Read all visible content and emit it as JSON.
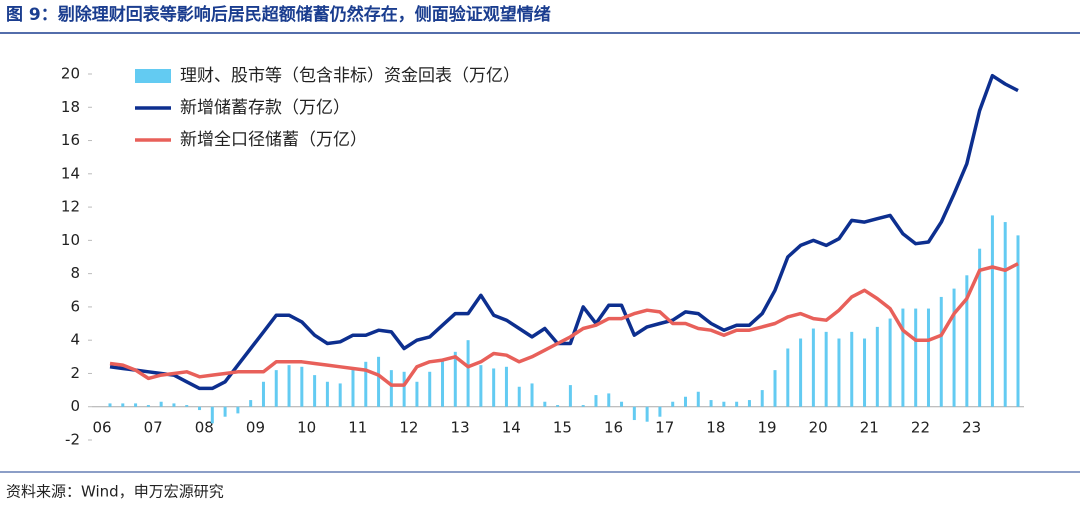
{
  "chart_data": {
    "type": "bar_line",
    "title": "图 9：剔除理财回表等影响后居民超额储蓄仍然存在，侧面验证观望情绪",
    "source": "资料来源：Wind，申万宏源研究",
    "categories": [
      "06",
      null,
      null,
      null,
      "07",
      null,
      null,
      null,
      "08",
      null,
      null,
      null,
      "09",
      null,
      null,
      null,
      "10",
      null,
      null,
      null,
      "11",
      null,
      null,
      null,
      "12",
      null,
      null,
      null,
      "13",
      null,
      null,
      null,
      "14",
      null,
      null,
      null,
      "15",
      null,
      null,
      null,
      "16",
      null,
      null,
      null,
      "17",
      null,
      null,
      null,
      "18",
      null,
      null,
      null,
      "19",
      null,
      null,
      null,
      "20",
      null,
      null,
      null,
      "21",
      null,
      null,
      null,
      "22",
      null,
      null,
      null,
      "23",
      null,
      null,
      null
    ],
    "ylim": [
      -2,
      20
    ],
    "yticks": [
      -2,
      0,
      2,
      4,
      6,
      8,
      10,
      12,
      14,
      16,
      18,
      20
    ],
    "legend": "upper left",
    "grid": false,
    "series": [
      {
        "name": "理财、股市等（包含非标）资金回表（万亿）",
        "type": "bar",
        "color": "#63cbf2",
        "values": [
          0.2,
          0.2,
          0.2,
          0.1,
          0.3,
          0.2,
          0.1,
          -0.2,
          -1.0,
          -0.6,
          -0.4,
          0.4,
          1.5,
          2.2,
          2.5,
          2.4,
          1.9,
          1.5,
          1.4,
          2.3,
          2.7,
          3.0,
          2.2,
          2.1,
          1.5,
          2.1,
          2.8,
          3.3,
          4.0,
          2.5,
          2.3,
          2.4,
          1.2,
          1.4,
          0.3,
          0.1,
          1.3,
          0.1,
          0.7,
          0.8,
          0.3,
          -0.8,
          -0.9,
          -0.6,
          0.3,
          0.6,
          0.9,
          0.4,
          0.3,
          0.3,
          0.4,
          1.0,
          2.2,
          3.5,
          4.1,
          4.7,
          4.5,
          4.1,
          4.5,
          4.1,
          4.8,
          5.3,
          5.9,
          5.9,
          5.9,
          6.6,
          7.1,
          7.9,
          9.5,
          11.5,
          11.1,
          10.3
        ]
      },
      {
        "name": "新增储蓄存款（万亿）",
        "type": "line",
        "color": "#0d2f8f",
        "values": [
          2.4,
          2.3,
          2.2,
          2.1,
          2.0,
          1.9,
          1.5,
          1.1,
          1.1,
          1.5,
          2.5,
          3.5,
          4.5,
          5.5,
          5.5,
          5.1,
          4.3,
          3.8,
          3.9,
          4.3,
          4.3,
          4.6,
          4.5,
          3.5,
          4.0,
          4.2,
          4.9,
          5.6,
          5.6,
          6.7,
          5.5,
          5.2,
          4.7,
          4.2,
          4.7,
          3.8,
          3.8,
          6.0,
          5.0,
          6.1,
          6.1,
          4.3,
          4.8,
          5.0,
          5.2,
          5.7,
          5.6,
          5.0,
          4.6,
          4.9,
          4.9,
          5.6,
          7.0,
          9.0,
          9.7,
          10.0,
          9.7,
          10.1,
          11.2,
          11.1,
          11.3,
          11.5,
          10.4,
          9.8,
          9.9,
          11.1,
          12.8,
          14.6,
          17.8,
          19.9,
          19.4,
          19.0
        ]
      },
      {
        "name": "新增全口径储蓄（万亿）",
        "type": "line",
        "color": "#e8605a",
        "values": [
          2.6,
          2.5,
          2.2,
          1.7,
          1.9,
          2.0,
          2.1,
          1.8,
          1.9,
          2.0,
          2.1,
          2.1,
          2.1,
          2.7,
          2.7,
          2.7,
          2.6,
          2.5,
          2.4,
          2.3,
          2.2,
          1.9,
          1.3,
          1.3,
          2.4,
          2.7,
          2.8,
          3.0,
          2.4,
          2.7,
          3.2,
          3.1,
          2.7,
          3.0,
          3.4,
          3.8,
          4.2,
          4.7,
          4.9,
          5.3,
          5.3,
          5.6,
          5.8,
          5.7,
          5.0,
          5.0,
          4.7,
          4.6,
          4.3,
          4.6,
          4.6,
          4.8,
          5.0,
          5.4,
          5.6,
          5.3,
          5.2,
          5.8,
          6.6,
          7.0,
          6.5,
          5.9,
          4.6,
          4.0,
          4.0,
          4.3,
          5.6,
          6.5,
          8.2,
          8.4,
          8.2,
          8.6
        ]
      }
    ]
  }
}
